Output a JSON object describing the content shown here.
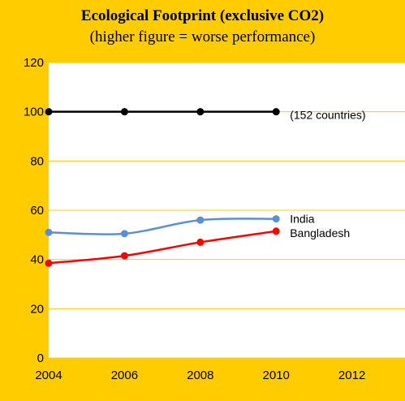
{
  "chart_data": {
    "type": "line",
    "title": "Ecological Footprint (exclusive CO2)",
    "subtitle": "(higher figure = worse performance)",
    "xlabel": "",
    "ylabel": "",
    "x_ticks": [
      "2004",
      "2006",
      "2008",
      "2010",
      "2012"
    ],
    "y_ticks": [
      "0",
      "20",
      "40",
      "60",
      "80",
      "100",
      "120"
    ],
    "xlim": [
      2004,
      2013.4
    ],
    "ylim": [
      0,
      120
    ],
    "grid": true,
    "legend": "labels at right end of lines",
    "background": "#FFCC00",
    "plot_background": "#FFFFFF",
    "gridline_color": "#FFCC00",
    "series": [
      {
        "name": "(152 countries)",
        "color": "#000000",
        "smooth": false,
        "x": [
          2004,
          2006,
          2008,
          2010
        ],
        "y": [
          100,
          100,
          100,
          100
        ]
      },
      {
        "name": "India",
        "color": "#5B8FD4",
        "smooth": true,
        "x": [
          2004,
          2006,
          2008,
          2010
        ],
        "y": [
          51,
          50.5,
          56,
          56.5
        ]
      },
      {
        "name": "Bangladesh",
        "color": "#FF0000",
        "smooth": true,
        "x": [
          2004,
          2006,
          2008,
          2010
        ],
        "y": [
          38.5,
          41.5,
          47,
          51.5
        ]
      }
    ]
  }
}
